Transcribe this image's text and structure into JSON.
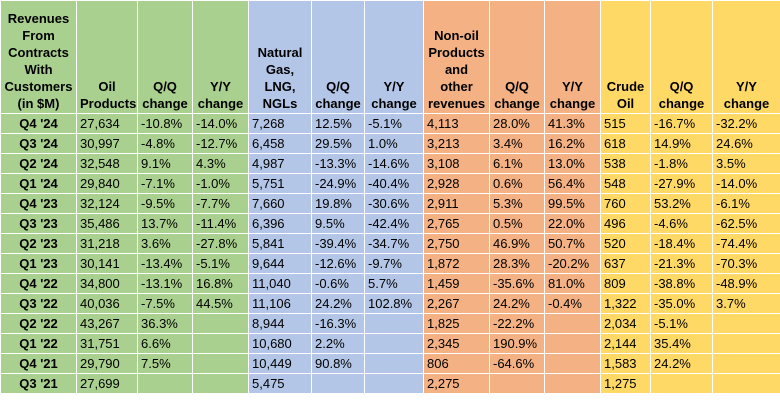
{
  "headers": [
    "Revenues From Contracts With Customers (in $M)",
    "Oil Products",
    "Q/Q change",
    "Y/Y change",
    "Natural Gas, LNG, NGLs",
    "Q/Q change",
    "Y/Y change",
    "Non-oil Products and other revenues",
    "Q/Q change",
    "Y/Y change",
    "Crude Oil",
    "Q/Q change",
    "Y/Y change"
  ],
  "rows": [
    [
      "Q4 '24",
      "27,634",
      "-10.8%",
      "-14.0%",
      "7,268",
      "12.5%",
      "-5.1%",
      "4,113",
      "28.0%",
      "41.3%",
      "515",
      "-16.7%",
      "-32.2%"
    ],
    [
      "Q3 '24",
      "30,997",
      "-4.8%",
      "-12.7%",
      "6,458",
      "29.5%",
      "1.0%",
      "3,213",
      "3.4%",
      "16.2%",
      "618",
      "14.9%",
      "24.6%"
    ],
    [
      "Q2 '24",
      "32,548",
      "9.1%",
      "4.3%",
      "4,987",
      "-13.3%",
      "-14.6%",
      "3,108",
      "6.1%",
      "13.0%",
      "538",
      "-1.8%",
      "3.5%"
    ],
    [
      "Q1 '24",
      "29,840",
      "-7.1%",
      "-1.0%",
      "5,751",
      "-24.9%",
      "-40.4%",
      "2,928",
      "0.6%",
      "56.4%",
      "548",
      "-27.9%",
      "-14.0%"
    ],
    [
      "Q4 '23",
      "32,124",
      "-9.5%",
      "-7.7%",
      "7,660",
      "19.8%",
      "-30.6%",
      "2,911",
      "5.3%",
      "99.5%",
      "760",
      "53.2%",
      "-6.1%"
    ],
    [
      "Q3 '23",
      "35,486",
      "13.7%",
      "-11.4%",
      "6,396",
      "9.5%",
      "-42.4%",
      "2,765",
      "0.5%",
      "22.0%",
      "496",
      "-4.6%",
      "-62.5%"
    ],
    [
      "Q2 '23",
      "31,218",
      "3.6%",
      "-27.8%",
      "5,841",
      "-39.4%",
      "-34.7%",
      "2,750",
      "46.9%",
      "50.7%",
      "520",
      "-18.4%",
      "-74.4%"
    ],
    [
      "Q1 '23",
      "30,141",
      "-13.4%",
      "-5.1%",
      "9,644",
      "-12.6%",
      "-9.7%",
      "1,872",
      "28.3%",
      "-20.2%",
      "637",
      "-21.3%",
      "-70.3%"
    ],
    [
      "Q4 '22",
      "34,800",
      "-13.1%",
      "16.8%",
      "11,040",
      "-0.6%",
      "5.7%",
      "1,459",
      "-35.6%",
      "81.0%",
      "809",
      "-38.8%",
      "-48.9%"
    ],
    [
      "Q3 '22",
      "40,036",
      "-7.5%",
      "44.5%",
      "11,106",
      "24.2%",
      "102.8%",
      "2,267",
      "24.2%",
      "-0.4%",
      "1,322",
      "-35.0%",
      "3.7%"
    ],
    [
      "Q2 '22",
      "43,267",
      "36.3%",
      "",
      "8,944",
      "-16.3%",
      "",
      "1,825",
      "-22.2%",
      "",
      "2,034",
      "-5.1%",
      ""
    ],
    [
      "Q1 '22",
      "31,751",
      "6.6%",
      "",
      "10,680",
      "2.2%",
      "",
      "2,345",
      "190.9%",
      "",
      "2,144",
      "35.4%",
      ""
    ],
    [
      "Q4 '21",
      "29,790",
      "7.5%",
      "",
      "10,449",
      "90.8%",
      "",
      "806",
      "-64.6%",
      "",
      "1,583",
      "24.2%",
      ""
    ],
    [
      "Q3 '21",
      "27,699",
      "",
      "",
      "5,475",
      "",
      "",
      "2,275",
      "",
      "",
      "1,275",
      "",
      ""
    ]
  ],
  "colors": {
    "green": "#a9d08e",
    "blue": "#b4c6e7",
    "orange": "#f4b183",
    "yellow": "#ffd966"
  }
}
